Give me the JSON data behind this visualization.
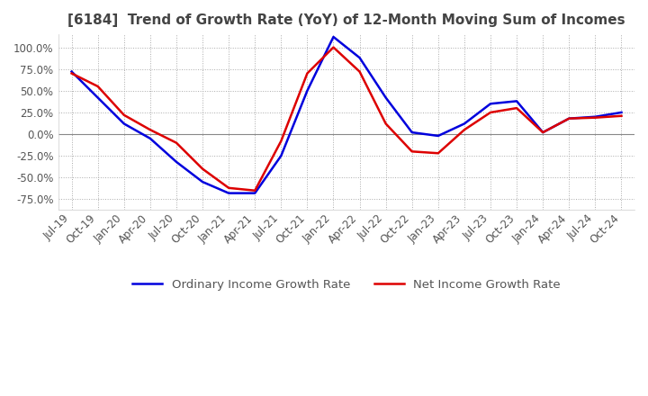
{
  "title": "[6184]  Trend of Growth Rate (YoY) of 12-Month Moving Sum of Incomes",
  "title_fontsize": 11,
  "title_color": "#444444",
  "background_color": "#ffffff",
  "plot_background_color": "#ffffff",
  "grid_color": "#aaaaaa",
  "ordinary_income_color": "#0000dd",
  "net_income_color": "#dd0000",
  "line_width": 1.8,
  "legend_fontsize": 9.5,
  "tick_fontsize": 8.5,
  "tick_color": "#555555",
  "ylim": [
    -0.875,
    1.15
  ],
  "yticks": [
    -0.75,
    -0.5,
    -0.25,
    0.0,
    0.25,
    0.5,
    0.75,
    1.0
  ],
  "x_labels": [
    "Jul-19",
    "Oct-19",
    "Jan-20",
    "Apr-20",
    "Jul-20",
    "Oct-20",
    "Jan-21",
    "Apr-21",
    "Jul-21",
    "Oct-21",
    "Jan-22",
    "Apr-22",
    "Jul-22",
    "Oct-22",
    "Jan-23",
    "Apr-23",
    "Jul-23",
    "Oct-23",
    "Jan-24",
    "Apr-24",
    "Jul-24",
    "Oct-24"
  ],
  "ordinary_income": [
    0.72,
    0.42,
    0.12,
    -0.05,
    -0.32,
    -0.55,
    -0.68,
    -0.68,
    -0.25,
    0.5,
    1.12,
    0.88,
    0.42,
    0.02,
    -0.02,
    0.12,
    0.35,
    0.38,
    0.02,
    0.18,
    0.2,
    0.25
  ],
  "net_income": [
    0.7,
    0.55,
    0.22,
    0.05,
    -0.1,
    -0.4,
    -0.62,
    -0.65,
    -0.08,
    0.7,
    1.0,
    0.72,
    0.12,
    -0.2,
    -0.22,
    0.05,
    0.25,
    0.3,
    0.02,
    0.18,
    0.19,
    0.21
  ]
}
